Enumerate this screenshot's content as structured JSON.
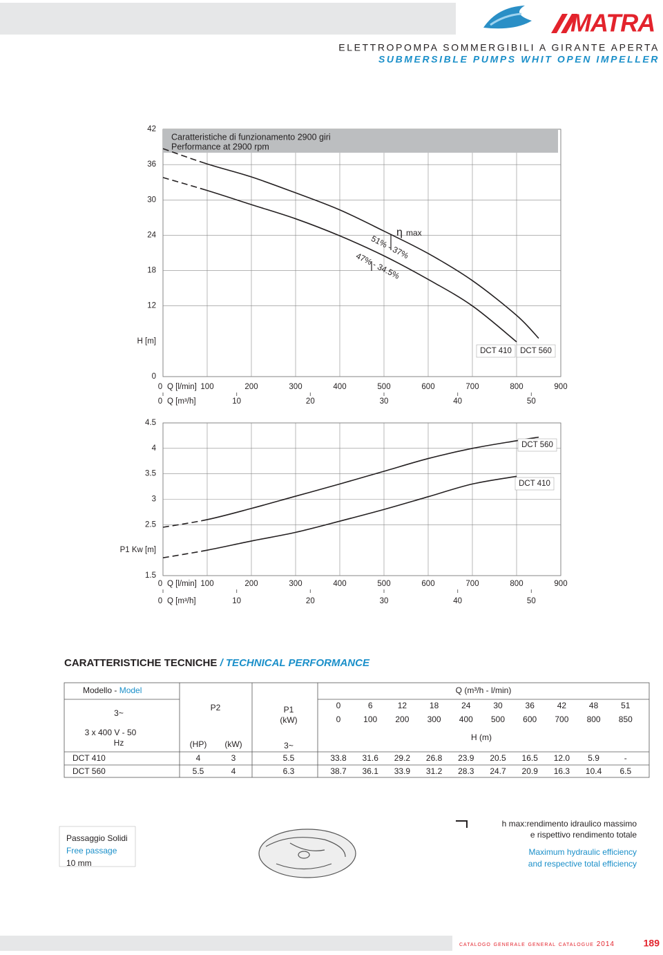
{
  "header": {
    "brand": "MATRA",
    "title": "ELETTROPOMPA SOMMERGIBILI A GIRANTE APERTA",
    "subtitle": "SUBMERSIBLE PUMPS WHIT OPEN IMPELLER"
  },
  "chart_data": [
    {
      "type": "line",
      "title": "Caratteristiche di funzionamento 2900 giri",
      "subtitle": "Performance at 2900 rpm",
      "ylabel": "H [m]",
      "xlabel": "Q [l/min]",
      "x2label": "Q [m³/h]",
      "x": [
        0,
        100,
        200,
        300,
        400,
        500,
        600,
        700,
        800,
        850
      ],
      "series": [
        {
          "name": "DCT 410",
          "color": "#231f20",
          "values": [
            33.8,
            31.6,
            29.2,
            26.8,
            23.9,
            20.5,
            16.5,
            12.0,
            5.9,
            null
          ]
        },
        {
          "name": "DCT 560",
          "color": "#231f20",
          "values": [
            38.7,
            36.1,
            33.9,
            31.2,
            28.3,
            24.7,
            20.9,
            16.3,
            10.4,
            6.5
          ]
        }
      ],
      "xlim": [
        0,
        900
      ],
      "xticks": [
        0,
        100,
        200,
        300,
        400,
        500,
        600,
        700,
        800,
        900
      ],
      "x2lim": [
        0,
        54
      ],
      "x2ticks": [
        0,
        10,
        20,
        30,
        40,
        50
      ],
      "ylim": [
        0,
        42
      ],
      "yticks": [
        0,
        12,
        18,
        24,
        30,
        36,
        42
      ],
      "grid": true,
      "annotations": [
        "η",
        "max",
        "51% - 37%",
        "47% - 34.5%"
      ]
    },
    {
      "type": "line",
      "ylabel": "P1 Kw [m]",
      "xlabel": "Q [l/min]",
      "x2label": "Q [m³/h]",
      "x": [
        0,
        100,
        200,
        300,
        400,
        500,
        600,
        700,
        800,
        850
      ],
      "series": [
        {
          "name": "DCT 560",
          "color": "#231f20",
          "values": [
            2.45,
            2.6,
            2.82,
            3.06,
            3.3,
            3.55,
            3.8,
            4.0,
            4.15,
            4.22
          ]
        },
        {
          "name": "DCT 410",
          "color": "#231f20",
          "values": [
            1.85,
            2.0,
            2.18,
            2.35,
            2.57,
            2.8,
            3.05,
            3.3,
            3.45,
            null
          ]
        }
      ],
      "xlim": [
        0,
        900
      ],
      "xticks": [
        0,
        100,
        200,
        300,
        400,
        500,
        600,
        700,
        800,
        900
      ],
      "x2lim": [
        0,
        54
      ],
      "x2ticks": [
        0,
        10,
        20,
        30,
        40,
        50
      ],
      "ylim": [
        1.5,
        4.5
      ],
      "yticks": [
        1.5,
        2.5,
        3,
        3.5,
        4,
        4.5
      ],
      "grid": true
    }
  ],
  "table": {
    "title": "CARATTERISTICHE TECNICHE",
    "title_en": "/ TECHNICAL PERFORMANCE",
    "model_header": "Modello -",
    "model_header_en": "Model",
    "phase": "3~",
    "supply": "3 x 400 V - 50",
    "supply_unit": "Hz",
    "p2": "P2",
    "hp": "(HP)",
    "kw": "(kW)",
    "p1": "P1",
    "p1_unit": "(kW)",
    "p1_phase": "3~",
    "q_header": "Q  (m³/h - l/min)",
    "q_m3h": [
      "0",
      "6",
      "12",
      "18",
      "24",
      "30",
      "36",
      "42",
      "48",
      "51"
    ],
    "q_lmin": [
      "0",
      "100",
      "200",
      "300",
      "400",
      "500",
      "600",
      "700",
      "800",
      "850"
    ],
    "h_header": "H (m)",
    "rows": [
      {
        "model": "DCT 410",
        "hp": "4",
        "kw": "3",
        "p1": "5.5",
        "head": [
          "33.8",
          "31.6",
          "29.2",
          "26.8",
          "23.9",
          "20.5",
          "16.5",
          "12.0",
          "5.9",
          "-"
        ]
      },
      {
        "model": "DCT 560",
        "hp": "5.5",
        "kw": "4",
        "p1": "6.3",
        "head": [
          "38.7",
          "36.1",
          "33.9",
          "31.2",
          "28.3",
          "24.7",
          "20.9",
          "16.3",
          "10.4",
          "6.5"
        ]
      }
    ]
  },
  "solids": {
    "label": "Passaggio Solidi",
    "label_en": "Free passage",
    "value": "10 mm"
  },
  "legend": {
    "line1": "h max:rendimento idraulico massimo",
    "line2": "e rispettivo rendimento totale",
    "line3": "Maximum hydraulic efficiency",
    "line4": "and respective total efficiency"
  },
  "footer": {
    "catalogue": "catalogo generale",
    "catalogue_en": "general catalogue 2014",
    "page": "189"
  }
}
